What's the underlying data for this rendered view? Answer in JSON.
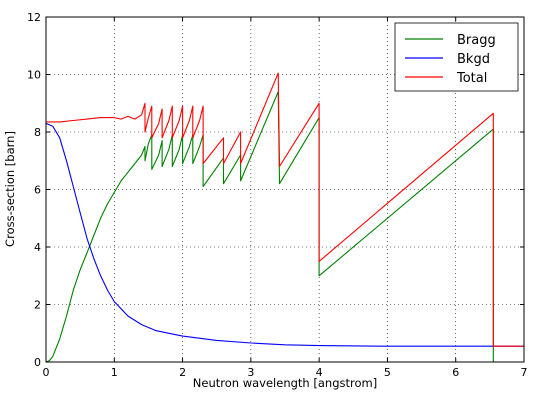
{
  "chart_data": {
    "type": "line",
    "title": "",
    "xlabel": "Neutron wavelength [angstrom]",
    "ylabel": "Cross-section [barn]",
    "xlim": [
      0,
      7
    ],
    "ylim": [
      0,
      12
    ],
    "xticks": [
      "0",
      "1",
      "2",
      "3",
      "4",
      "5",
      "6",
      "7"
    ],
    "yticks": [
      "0",
      "2",
      "4",
      "6",
      "8",
      "10",
      "12"
    ],
    "grid": true,
    "grid_style": "dotted",
    "legend_position": "top-right",
    "series": [
      {
        "name": "Bragg",
        "color": "#008000",
        "x": [
          0,
          0.05,
          0.1,
          0.2,
          0.3,
          0.4,
          0.5,
          0.6,
          0.7,
          0.8,
          0.9,
          1.0,
          1.1,
          1.2,
          1.3,
          1.4,
          1.45,
          1.45,
          1.5,
          1.55,
          1.55,
          1.65,
          1.7,
          1.7,
          1.8,
          1.85,
          1.85,
          1.95,
          2.0,
          2.0,
          2.1,
          2.15,
          2.15,
          2.25,
          2.3,
          2.3,
          2.6,
          2.6,
          2.85,
          2.85,
          3.4,
          3.42,
          4.0,
          4.0,
          6.55,
          6.55
        ],
        "y": [
          0,
          0.05,
          0.2,
          0.8,
          1.6,
          2.5,
          3.2,
          3.8,
          4.4,
          5.0,
          5.5,
          5.9,
          6.3,
          6.6,
          6.9,
          7.2,
          7.5,
          7.0,
          7.6,
          7.9,
          6.7,
          7.2,
          7.7,
          6.8,
          7.4,
          7.9,
          6.8,
          7.4,
          7.9,
          6.9,
          7.5,
          7.9,
          6.9,
          7.5,
          7.9,
          6.1,
          7.1,
          6.2,
          7.2,
          6.3,
          9.4,
          6.2,
          8.5,
          3.0,
          8.1,
          0
        ]
      },
      {
        "name": "Bkgd",
        "color": "#0000ff",
        "x": [
          0,
          0.1,
          0.2,
          0.3,
          0.4,
          0.5,
          0.6,
          0.7,
          0.8,
          0.9,
          1.0,
          1.2,
          1.4,
          1.6,
          1.8,
          2.0,
          2.5,
          3.0,
          3.5,
          4.0,
          5.0,
          6.0,
          7.0
        ],
        "y": [
          8.3,
          8.2,
          7.8,
          7.0,
          6.1,
          5.2,
          4.3,
          3.6,
          3.0,
          2.5,
          2.1,
          1.6,
          1.3,
          1.1,
          1.0,
          0.9,
          0.75,
          0.66,
          0.6,
          0.57,
          0.55,
          0.55,
          0.55
        ]
      },
      {
        "name": "Total",
        "color": "#ff0000",
        "x": [
          0,
          0.2,
          0.4,
          0.6,
          0.8,
          1.0,
          1.1,
          1.2,
          1.3,
          1.4,
          1.45,
          1.45,
          1.5,
          1.55,
          1.55,
          1.65,
          1.7,
          1.7,
          1.8,
          1.85,
          1.85,
          1.95,
          2.0,
          2.0,
          2.1,
          2.15,
          2.15,
          2.25,
          2.3,
          2.3,
          2.6,
          2.6,
          2.85,
          2.85,
          3.4,
          3.42,
          4.0,
          4.0,
          6.55,
          6.55,
          7.0
        ],
        "y": [
          8.35,
          8.35,
          8.4,
          8.45,
          8.5,
          8.5,
          8.45,
          8.55,
          8.45,
          8.6,
          9.0,
          8.0,
          8.5,
          8.9,
          7.8,
          8.3,
          8.8,
          7.8,
          8.4,
          8.9,
          7.8,
          8.4,
          8.9,
          7.8,
          8.4,
          8.9,
          7.8,
          8.4,
          8.9,
          6.9,
          7.8,
          6.9,
          8.0,
          6.9,
          10.05,
          6.8,
          9.0,
          3.5,
          8.65,
          0.55,
          0.55
        ]
      }
    ]
  }
}
